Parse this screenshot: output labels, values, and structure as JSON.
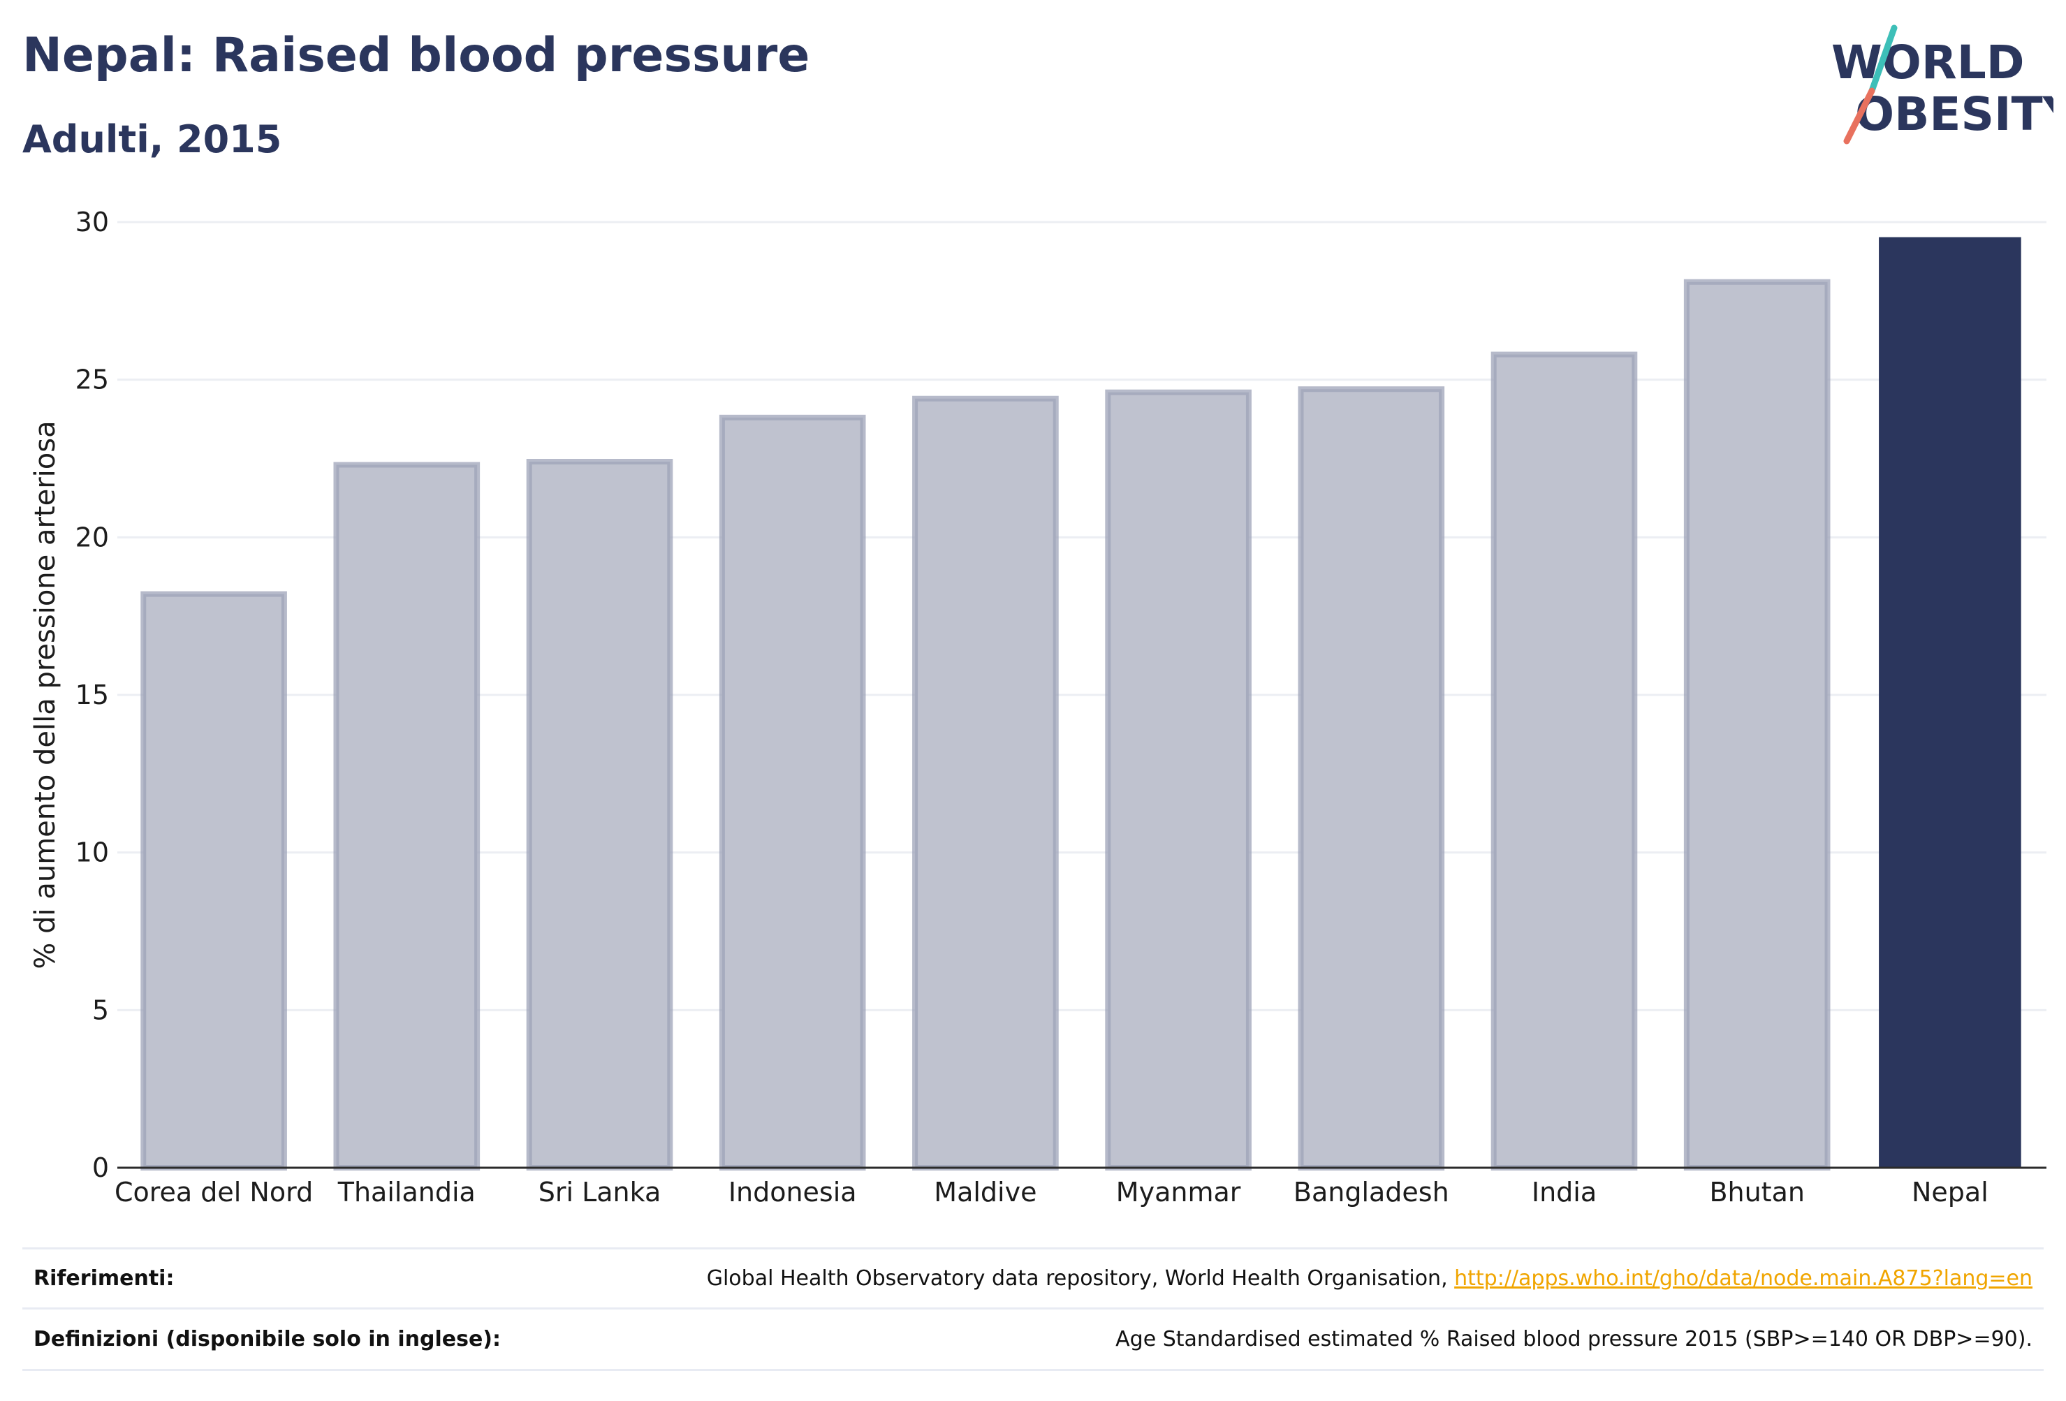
{
  "header": {
    "title": "Nepal: Raised blood pressure",
    "subtitle": "Adulti, 2015"
  },
  "logo": {
    "line1": "WORLD",
    "line2": "OBESITY",
    "icon": "world-obesity-logo",
    "colors": {
      "text": "#2b365d",
      "slash_top": "#3dbfb8",
      "slash_bottom": "#e8715e"
    }
  },
  "chart_data": {
    "type": "bar",
    "categories": [
      "Corea del Nord",
      "Thailandia",
      "Sri Lanka",
      "Indonesia",
      "Maldive",
      "Myanmar",
      "Bangladesh",
      "India",
      "Bhutan",
      "Nepal"
    ],
    "values": [
      18.2,
      22.3,
      22.4,
      23.8,
      24.4,
      24.6,
      24.7,
      25.8,
      28.1,
      29.5
    ],
    "highlight": "Nepal",
    "ylabel": "% di aumento della pressione arteriosa",
    "xlabel": "",
    "ylim": [
      0,
      30
    ],
    "yticks": [
      0,
      5,
      10,
      15,
      20,
      25,
      30
    ],
    "grid": true,
    "colors": {
      "bar": "#bfc2cf",
      "bar_outline": "#9ea3b8",
      "highlight": "#2b365d",
      "grid": "#eceef3",
      "axis": "#2b2b2b"
    }
  },
  "footer": {
    "references_label": "Riferimenti:",
    "references_text": "Global Health Observatory data repository, World Health Organisation, ",
    "references_link": "http://apps.who.int/gho/data/node.main.A875?lang=en",
    "definitions_label": "Definizioni (disponibile solo in inglese):",
    "definitions_text": "Age Standardised estimated % Raised blood pressure 2015 (SBP>=140 OR DBP>=90)."
  }
}
